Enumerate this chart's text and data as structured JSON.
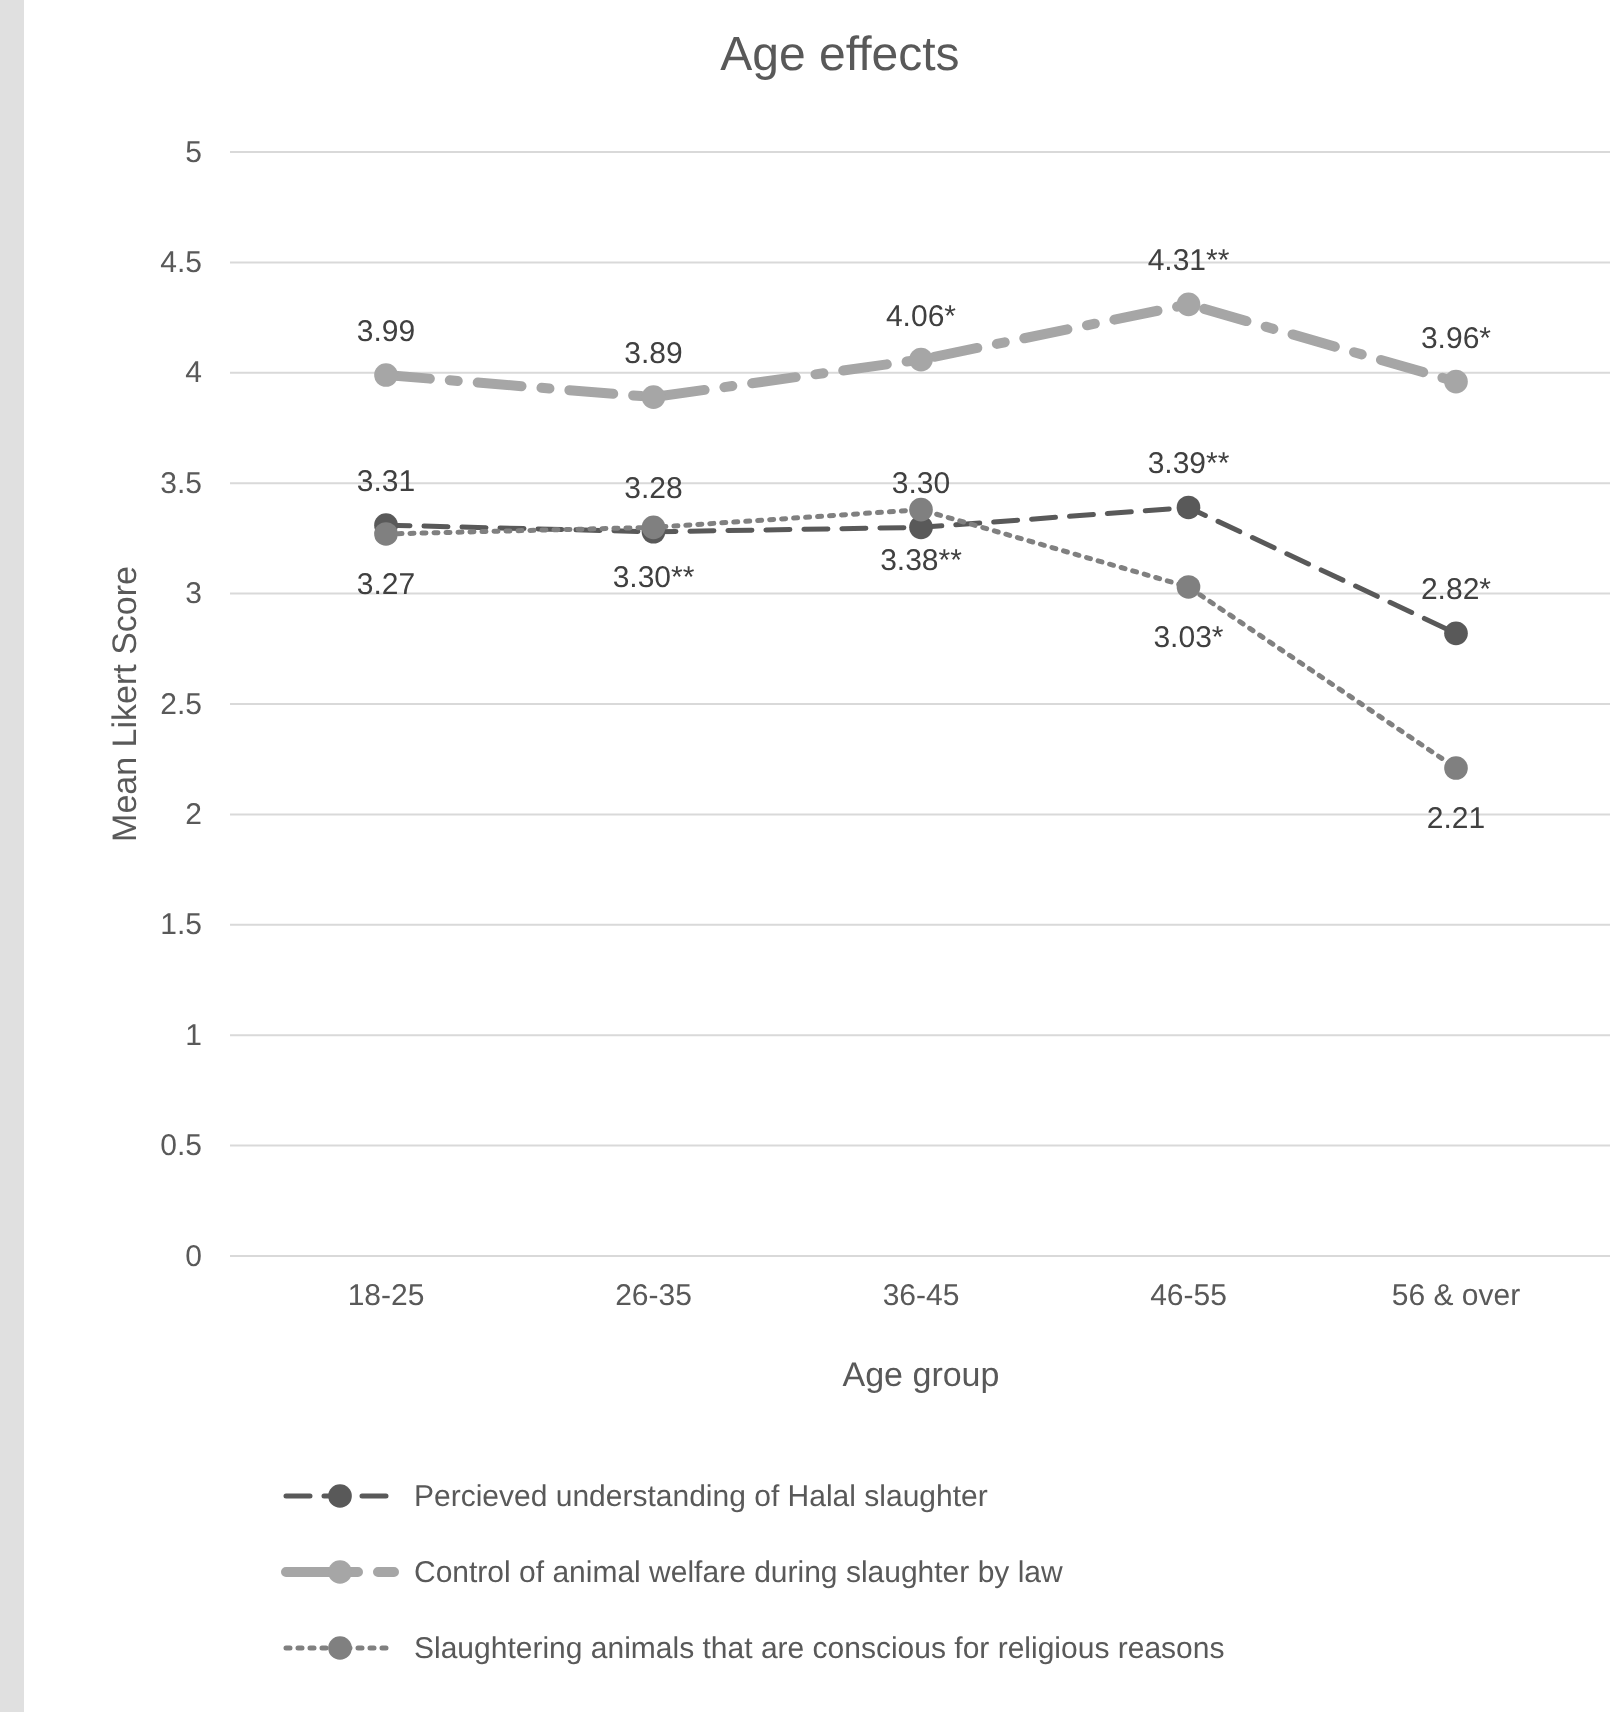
{
  "chart_data": {
    "type": "line",
    "title": "Age effects",
    "xlabel": "Age group",
    "ylabel": "Mean Likert Score",
    "categories": [
      "18-25",
      "26-35",
      "36-45",
      "46-55",
      "56 & over"
    ],
    "ylim": [
      0,
      5
    ],
    "yticks": [
      0,
      0.5,
      1,
      1.5,
      2,
      2.5,
      3,
      3.5,
      4,
      4.5,
      5
    ],
    "grid": "y",
    "legend": "bottom",
    "marker": "circle",
    "series": [
      {
        "name": "Percieved understanding of Halal slaughter",
        "color": "#595959",
        "line_style": "dashed",
        "values": [
          3.31,
          3.28,
          3.3,
          3.39,
          2.82
        ],
        "value_labels": [
          "3.31",
          "3.28",
          "3.30",
          "3.39**",
          "2.82*"
        ]
      },
      {
        "name": "Control of animal welfare during slaughter by law",
        "color": "#a6a6a6",
        "line_style": "dashdot",
        "values": [
          3.99,
          3.89,
          4.06,
          4.31,
          3.96
        ],
        "value_labels": [
          "3.99",
          "3.89",
          "4.06*",
          "4.31**",
          "3.96*"
        ]
      },
      {
        "name": "Slaughtering animals that are conscious for religious reasons",
        "color": "#808080",
        "line_style": "dotted",
        "values": [
          3.27,
          3.3,
          3.38,
          3.03,
          2.21
        ],
        "value_labels": [
          "3.27",
          "3.30**",
          "3.38**",
          "3.03*",
          "2.21"
        ]
      }
    ]
  }
}
